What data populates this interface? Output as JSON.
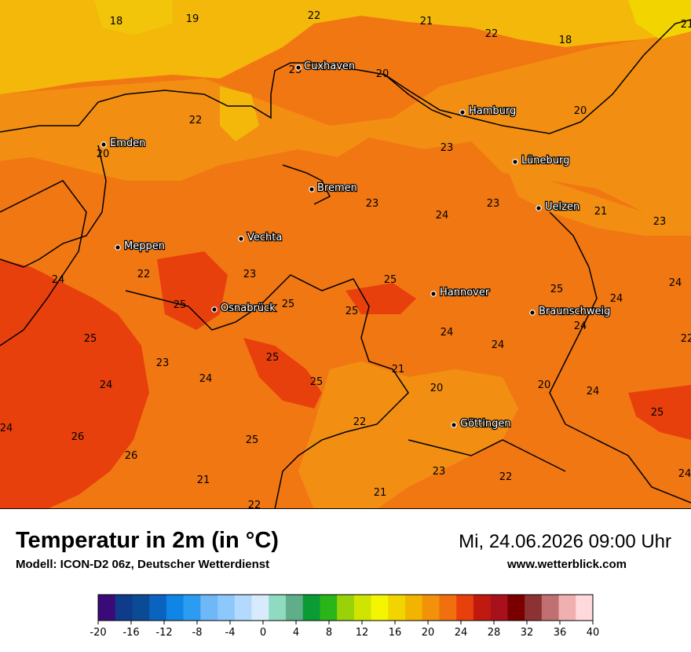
{
  "header": {
    "title": "Temperatur in 2m (in °C)",
    "subtitle": "Modell: ICON-D2 06z, Deutscher Wetterdienst",
    "datetime": "Mi, 24.06.2026 09:00 Uhr",
    "website": "www.wetterblick.com"
  },
  "cities": [
    {
      "name": "Cuxhaven"
    },
    {
      "name": "Hamburg"
    },
    {
      "name": "Emden"
    },
    {
      "name": "Lüneburg"
    },
    {
      "name": "Bremen"
    },
    {
      "name": "Uelzen"
    },
    {
      "name": "Vechta"
    },
    {
      "name": "Meppen"
    },
    {
      "name": "Hannover"
    },
    {
      "name": "Osnabrück"
    },
    {
      "name": "Braunschweig"
    },
    {
      "name": "Göttingen"
    }
  ],
  "temperature_labels": [
    "18",
    "19",
    "22",
    "21",
    "22",
    "18",
    "21",
    "23",
    "20",
    "22",
    "20",
    "20",
    "23",
    "23",
    "23",
    "24",
    "23",
    "21",
    "23",
    "22",
    "24",
    "25",
    "25",
    "24",
    "25",
    "25",
    "25",
    "24",
    "24",
    "22",
    "25",
    "24",
    "24",
    "21",
    "23",
    "24",
    "25",
    "20",
    "24",
    "25",
    "26",
    "24",
    "20",
    "25",
    "26",
    "25",
    "22",
    "21",
    "23",
    "22",
    "21",
    "22",
    "24",
    "24"
  ],
  "legend": {
    "ticks": [
      "-20",
      "-16",
      "-12",
      "-8",
      "-4",
      "0",
      "4",
      "8",
      "12",
      "16",
      "20",
      "24",
      "28",
      "32",
      "36",
      "40"
    ],
    "colors": [
      "#3a0a78",
      "#103a8a",
      "#0b4a95",
      "#0a64bf",
      "#0f86e6",
      "#2c9cf2",
      "#6fb8f8",
      "#8cc8fb",
      "#b3dafd",
      "#d8ebfd",
      "#8edbc0",
      "#5fae89",
      "#0a9b35",
      "#2ab51a",
      "#9ad20a",
      "#cfe400",
      "#f3f600",
      "#f2d400",
      "#f2b400",
      "#f2910a",
      "#f07010",
      "#e8400c",
      "#c01a10",
      "#a8111b",
      "#7a0000",
      "#8c3232",
      "#c07070",
      "#f1b0b0",
      "#ffd9dc"
    ]
  },
  "colors": {
    "yellow_band": "#f3b80a",
    "orange": "#f29112",
    "orange_dark": "#ef6f10",
    "red_orange": "#e8400c"
  }
}
